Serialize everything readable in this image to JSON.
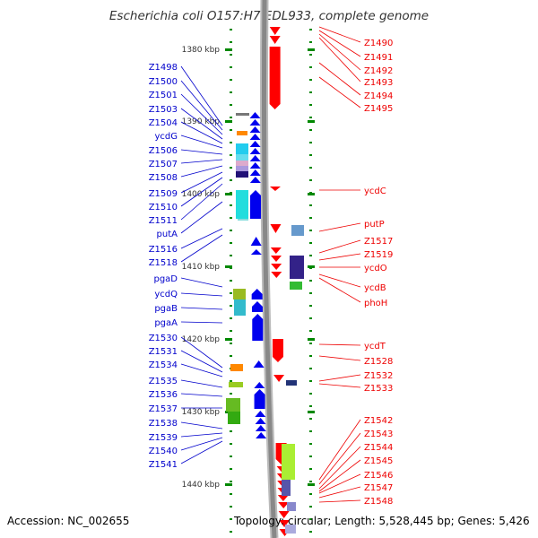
{
  "title": "Escherichia coli O157:H7 EDL933, complete genome",
  "accession": "Accession: NC_002655",
  "topology": "Topology: circular; Length: 5,528,445 bp; Genes: 5,426",
  "colors": {
    "left_labels": "#0000cc",
    "right_labels": "#ee0000",
    "scale": "#008800",
    "backbone": "#888888",
    "forward_gene": "#0000ee",
    "reverse_gene": "#ff0000"
  },
  "scale_ticks": [
    "1380 kbp",
    "1390 kbp",
    "1400 kbp",
    "1410 kbp",
    "1420 kbp",
    "1430 kbp",
    "1440 kbp"
  ],
  "left_genes": [
    "Z1498",
    "Z1500",
    "Z1501",
    "Z1503",
    "Z1504",
    "ycdG",
    "Z1506",
    "Z1507",
    "Z1508",
    "Z1509",
    "Z1510",
    "Z1511",
    "putA",
    "Z1516",
    "Z1518",
    "pgaD",
    "ycdQ",
    "pgaB",
    "pgaA",
    "Z1530",
    "Z1531",
    "Z1534",
    "Z1535",
    "Z1536",
    "Z1537",
    "Z1538",
    "Z1539",
    "Z1540",
    "Z1541"
  ],
  "right_genes": [
    "Z1490",
    "Z1491",
    "Z1492",
    "Z1493",
    "Z1494",
    "Z1495",
    "ycdC",
    "putP",
    "Z1517",
    "Z1519",
    "ycdO",
    "ycdB",
    "phoH",
    "ycdT",
    "Z1528",
    "Z1532",
    "Z1533",
    "Z1542",
    "Z1543",
    "Z1544",
    "Z1545",
    "Z1546",
    "Z1547",
    "Z1548"
  ]
}
